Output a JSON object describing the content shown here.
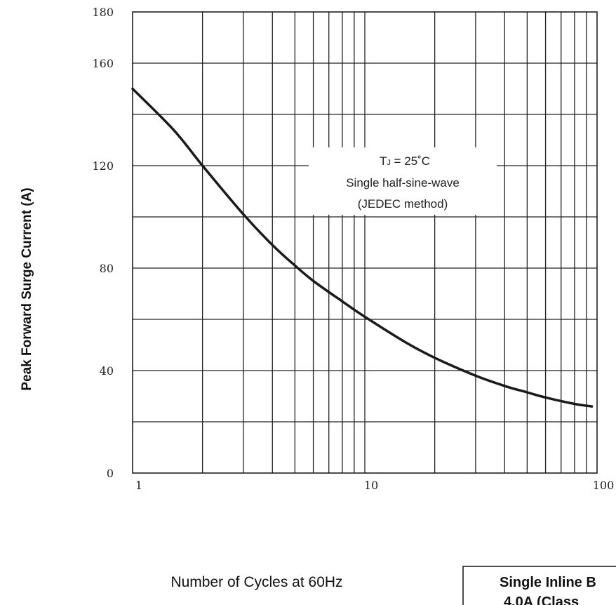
{
  "chart_data": {
    "type": "line",
    "title": "",
    "xlabel": "Number of Cycles at 60Hz",
    "ylabel": "Peak Forward Surge Current (A)",
    "x_scale": "log",
    "xlim": [
      1,
      100
    ],
    "ylim": [
      0,
      180
    ],
    "x_ticks": [
      "1",
      "10",
      "100"
    ],
    "y_ticks": [
      "0",
      "40",
      "80",
      "120",
      "160",
      "180"
    ],
    "grid": true,
    "annotation": {
      "line1_main": "T",
      "line1_sub": "J",
      "line1_rest": " = 25˚C",
      "line2": "Single half-sine-wave",
      "line3": "(JEDEC method)"
    },
    "series": [
      {
        "x": [
          1,
          1.5,
          2,
          3,
          4,
          5,
          6,
          8,
          10,
          15,
          20,
          30,
          40,
          50,
          60,
          80,
          95
        ],
        "y": [
          150,
          134,
          120,
          101,
          89,
          81,
          75,
          67,
          61,
          51,
          45,
          38,
          34,
          31.5,
          29.5,
          27,
          26
        ]
      }
    ]
  },
  "side_box": {
    "line1": "Single Inline B",
    "line2": "4.0A (Class"
  }
}
